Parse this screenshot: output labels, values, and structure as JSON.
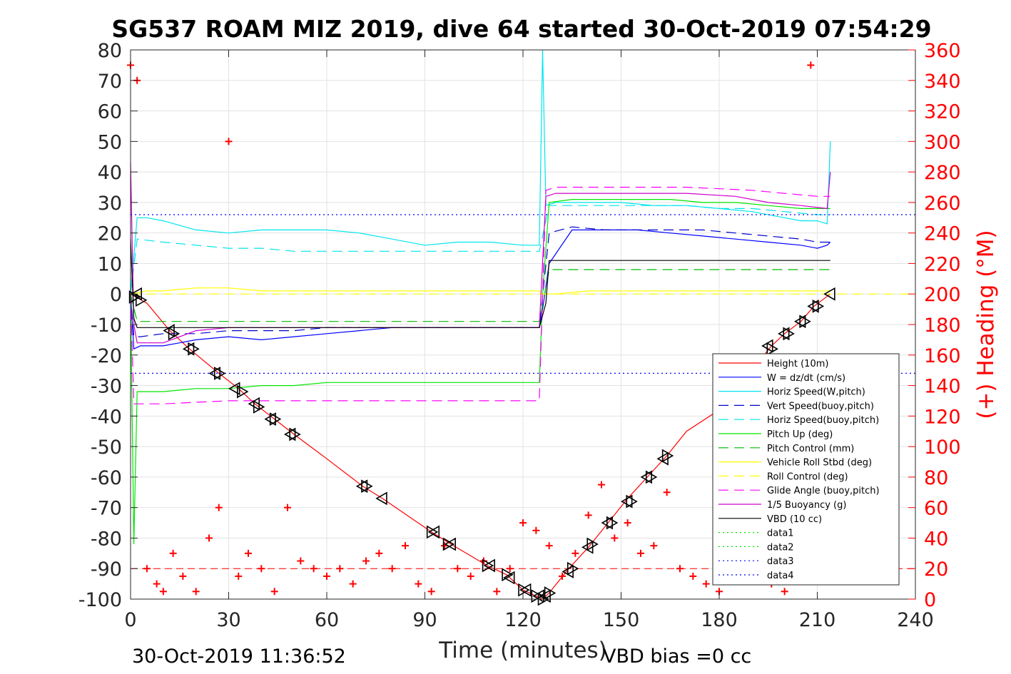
{
  "chart_data": {
    "type": "line",
    "title": "SG537 ROAM MIZ 2019, dive 64 started 30-Oct-2019 07:54:29",
    "xlabel": "Time (minutes)",
    "ylabel": "",
    "ylabel_right": "(+) Heading (°M)",
    "xlim": [
      0,
      240
    ],
    "ylim": [
      -100,
      80
    ],
    "ylim_right": [
      0,
      360
    ],
    "x_ticks": [
      "0",
      "30",
      "60",
      "90",
      "120",
      "150",
      "180",
      "210",
      "240"
    ],
    "y_ticks": [
      "80",
      "70",
      "60",
      "50",
      "40",
      "30",
      "20",
      "10",
      "0",
      "-10",
      "-20",
      "-30",
      "-40",
      "-50",
      "-60",
      "-70",
      "-80",
      "-90",
      "-100"
    ],
    "y_ticks_right": [
      "360",
      "340",
      "320",
      "300",
      "280",
      "260",
      "240",
      "220",
      "200",
      "180",
      "160",
      "140",
      "120",
      "100",
      "80",
      "60",
      "40",
      "20",
      "0"
    ],
    "grid": true,
    "legend_position": "lower-right",
    "footer_left": "30-Oct-2019 11:36:52",
    "footer_right": "VBD bias =0 cc",
    "series": [
      {
        "name": "Height (10m)",
        "color": "#ff0000",
        "style": "solid",
        "x": [
          0,
          5,
          12,
          18,
          27,
          33,
          38,
          44,
          50,
          60,
          71,
          77,
          92,
          98,
          109,
          115,
          120,
          124,
          126,
          128,
          134,
          140,
          146,
          152,
          158,
          164,
          170,
          180,
          190,
          196,
          200,
          205,
          209,
          214
        ],
        "y": [
          0,
          -3,
          -12,
          -18,
          -26,
          -31,
          -36,
          -41,
          -46,
          -54,
          -63,
          -67,
          -78,
          -82,
          -89,
          -92,
          -97,
          -99,
          -100,
          -98,
          -90,
          -83,
          -75,
          -67,
          -60,
          -53,
          -45,
          -38,
          -25,
          -17,
          -13,
          -9,
          -4,
          0
        ]
      },
      {
        "name": "W = dz/dt (cm/s)",
        "color": "#0000ff",
        "style": "solid",
        "x": [
          0,
          1,
          3,
          10,
          20,
          30,
          40,
          50,
          60,
          70,
          80,
          90,
          100,
          110,
          120,
          125,
          126,
          128,
          135,
          145,
          155,
          165,
          175,
          185,
          195,
          205,
          210,
          213,
          214
        ],
        "y": [
          0,
          -18,
          -17,
          -17,
          -15,
          -14,
          -15,
          -14,
          -13,
          -12,
          -11,
          -11,
          -11,
          -11,
          -11,
          -11,
          -5,
          10,
          21,
          21,
          21,
          20,
          19,
          18,
          17,
          16,
          15,
          16,
          17
        ]
      },
      {
        "name": "Horiz Speed(W,pitch)",
        "color": "#00e5ee",
        "style": "solid",
        "x": [
          0,
          2,
          5,
          10,
          20,
          30,
          40,
          50,
          60,
          70,
          80,
          90,
          100,
          110,
          120,
          125,
          126,
          127,
          130,
          140,
          150,
          160,
          170,
          180,
          190,
          200,
          205,
          210,
          213,
          214
        ],
        "y": [
          0,
          25,
          25,
          24,
          21,
          20,
          21,
          21,
          21,
          20,
          18,
          16,
          17,
          17,
          16,
          16,
          80,
          29,
          30,
          30,
          30,
          29,
          29,
          28,
          27,
          25,
          24,
          24,
          23,
          50
        ]
      },
      {
        "name": "Vert Speed(buoy,pitch)",
        "color": "#0000cd",
        "style": "dash",
        "x": [
          0,
          1,
          3,
          10,
          20,
          30,
          40,
          50,
          60,
          70,
          80,
          90,
          100,
          110,
          120,
          125,
          128,
          135,
          145,
          155,
          165,
          175,
          185,
          195,
          205,
          210,
          214
        ],
        "y": [
          0,
          -14,
          -14,
          -13,
          -13,
          -12,
          -12,
          -12,
          -11,
          -11,
          -11,
          -11,
          -11,
          -11,
          -11,
          -11,
          20,
          22,
          21,
          21,
          21,
          21,
          20,
          19,
          18,
          17,
          17
        ]
      },
      {
        "name": "Horiz Speed(buoy,pitch)",
        "color": "#00e5ee",
        "style": "dash",
        "x": [
          0,
          2,
          10,
          20,
          30,
          40,
          50,
          60,
          70,
          80,
          90,
          100,
          110,
          120,
          125,
          128,
          140,
          150,
          160,
          170,
          180,
          190,
          200,
          210,
          214
        ],
        "y": [
          0,
          18,
          17,
          16,
          15,
          15,
          14,
          14,
          14,
          14,
          14,
          14,
          14,
          14,
          14,
          29,
          29,
          29,
          29,
          29,
          28,
          28,
          27,
          26,
          26
        ]
      },
      {
        "name": "Pitch Up (deg)",
        "color": "#00e600",
        "style": "solid",
        "x": [
          0,
          1,
          2,
          3,
          10,
          20,
          30,
          40,
          50,
          60,
          70,
          80,
          90,
          100,
          110,
          120,
          125,
          126,
          128,
          135,
          145,
          155,
          165,
          175,
          185,
          195,
          205,
          210,
          214
        ],
        "y": [
          0,
          -82,
          -32,
          -32,
          -32,
          -31,
          -31,
          -30,
          -30,
          -29,
          -29,
          -29,
          -29,
          -29,
          -29,
          -29,
          -29,
          0,
          30,
          31,
          31,
          31,
          31,
          30,
          30,
          29,
          28,
          28,
          28
        ]
      },
      {
        "name": "Pitch Control (mm)",
        "color": "#00bb00",
        "style": "dash",
        "x": [
          0,
          2,
          10,
          30,
          60,
          90,
          120,
          125,
          128,
          150,
          180,
          210,
          214
        ],
        "y": [
          0,
          -9,
          -9,
          -9,
          -9,
          -9,
          -9,
          -9,
          8,
          8,
          8,
          8,
          8
        ]
      },
      {
        "name": "Vehicle Roll Stbd (deg)",
        "color": "#ffff00",
        "style": "solid",
        "x": [
          0,
          5,
          10,
          20,
          30,
          40,
          50,
          60,
          70,
          80,
          90,
          100,
          110,
          120,
          125,
          126,
          130,
          140,
          150,
          160,
          170,
          180,
          190,
          200,
          210,
          214
        ],
        "y": [
          0,
          1,
          1,
          2,
          2,
          1,
          1,
          1,
          1,
          1,
          1,
          1,
          1,
          1,
          1,
          0,
          0,
          1,
          1,
          1,
          1,
          1,
          1,
          1,
          1,
          1
        ]
      },
      {
        "name": "Roll Control (deg)",
        "color": "#ffff00",
        "style": "dash",
        "x": [
          0,
          240
        ],
        "y": [
          0,
          0
        ]
      },
      {
        "name": "Glide Angle (buoy,pitch)",
        "color": "#ff00ff",
        "style": "dash",
        "x": [
          0,
          1,
          2,
          10,
          30,
          60,
          90,
          120,
          125,
          127,
          130,
          150,
          170,
          190,
          200,
          210,
          214
        ],
        "y": [
          0,
          -36,
          -36,
          -36,
          -35,
          -35,
          -35,
          -35,
          -35,
          34,
          35,
          35,
          35,
          34,
          33,
          32,
          32
        ]
      },
      {
        "name": "1/5 Buoyancy (g)",
        "color": "#cc00cc",
        "style": "solid",
        "x": [
          0,
          1,
          2,
          5,
          10,
          20,
          30,
          40,
          60,
          80,
          100,
          120,
          125,
          127,
          130,
          150,
          170,
          185,
          195,
          205,
          213,
          214
        ],
        "y": [
          43,
          -10,
          -16,
          -16,
          -16,
          -12,
          -11,
          -11,
          -11,
          -11,
          -11,
          -11,
          -11,
          32,
          33,
          33,
          33,
          32,
          30,
          29,
          28,
          40
        ]
      },
      {
        "name": "VBD (10 cc)",
        "color": "#000000",
        "style": "solid",
        "x": [
          0,
          1,
          2,
          10,
          30,
          60,
          90,
          120,
          125,
          127,
          128,
          150,
          180,
          210,
          214
        ],
        "y": [
          18,
          -8,
          -11,
          -11,
          -11,
          -11,
          -11,
          -11,
          -11,
          -3,
          11,
          11,
          11,
          11,
          11
        ]
      },
      {
        "name": "data1",
        "color": "#00e600",
        "style": "dot",
        "x": [],
        "y": []
      },
      {
        "name": "data2",
        "color": "#00e600",
        "style": "dot",
        "x": [],
        "y": []
      },
      {
        "name": "data3",
        "color": "#0000ff",
        "style": "dot",
        "x": [
          0,
          240
        ],
        "y": [
          26,
          26
        ]
      },
      {
        "name": "data4",
        "color": "#0000ff",
        "style": "dot",
        "x": [
          0,
          240
        ],
        "y": [
          -26,
          -26
        ]
      }
    ],
    "reference_line": {
      "color": "#ff0000",
      "style": "dash",
      "y": -90
    },
    "heading_markers": {
      "color": "#ff0000",
      "axis": "right",
      "x": [
        0,
        2,
        5,
        8,
        10,
        13,
        16,
        20,
        24,
        27,
        30,
        33,
        36,
        40,
        44,
        48,
        52,
        56,
        60,
        64,
        68,
        72,
        76,
        80,
        84,
        88,
        92,
        96,
        100,
        104,
        108,
        112,
        116,
        120,
        124,
        128,
        132,
        136,
        140,
        144,
        148,
        152,
        156,
        160,
        164,
        168,
        172,
        176,
        180,
        184,
        188,
        192,
        196,
        200,
        204,
        208,
        212
      ],
      "y": [
        350,
        340,
        20,
        10,
        5,
        30,
        15,
        5,
        40,
        60,
        300,
        15,
        30,
        20,
        5,
        60,
        25,
        20,
        15,
        20,
        10,
        25,
        30,
        20,
        35,
        10,
        5,
        35,
        20,
        15,
        25,
        5,
        20,
        50,
        45,
        35,
        15,
        30,
        55,
        75,
        40,
        50,
        30,
        35,
        70,
        20,
        15,
        10,
        5,
        30,
        20,
        15,
        10,
        5,
        20,
        350,
        15
      ]
    },
    "dive_markers": {
      "color": "#000000",
      "x": [
        1,
        2,
        3,
        12,
        13,
        18,
        19,
        26,
        27,
        32,
        34,
        38,
        39,
        43,
        44,
        49,
        50,
        71,
        72,
        77,
        92,
        93,
        97,
        98,
        109,
        110,
        115,
        116,
        120,
        121,
        124,
        125,
        126,
        127,
        128,
        134,
        135,
        140,
        141,
        146,
        147,
        152,
        153,
        158,
        159,
        163,
        164,
        195,
        196,
        200,
        201,
        205,
        206,
        209,
        210,
        214
      ],
      "y": [
        -1,
        0,
        -2,
        -12,
        -13,
        -18,
        -18,
        -26,
        -26,
        -31,
        -32,
        -36,
        -37,
        -41,
        -41,
        -46,
        -46,
        -63,
        -63,
        -67,
        -78,
        -78,
        -82,
        -82,
        -89,
        -89,
        -92,
        -93,
        -97,
        -97,
        -99,
        -99,
        -100,
        -99,
        -98,
        -91,
        -90,
        -83,
        -82,
        -75,
        -75,
        -68,
        -68,
        -60,
        -60,
        -54,
        -53,
        -17,
        -18,
        -13,
        -13,
        -9,
        -9,
        -4,
        -4,
        0
      ]
    }
  }
}
